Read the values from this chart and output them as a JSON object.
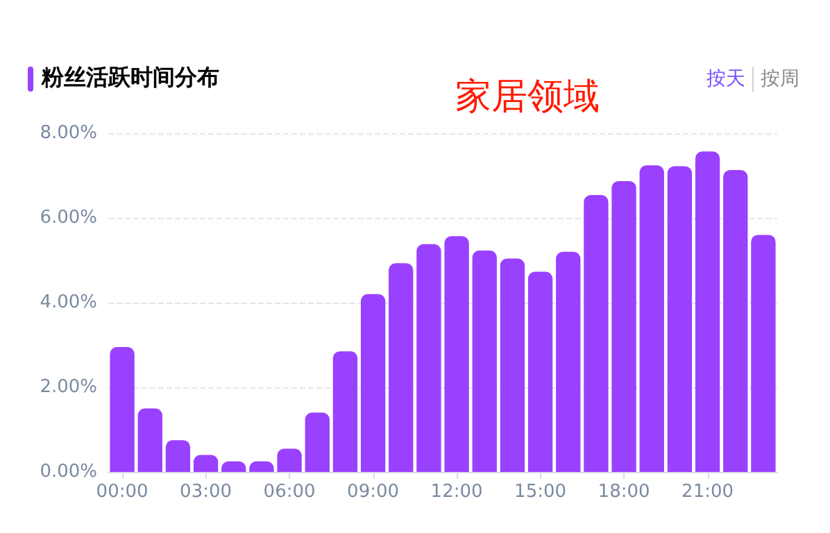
{
  "chart_data": {
    "type": "bar",
    "title": "粉丝活跃时间分布",
    "annotations": [
      "家居领域",
      "按天",
      "按周"
    ],
    "categories": [
      "00:00",
      null,
      null,
      "03:00",
      null,
      null,
      "06:00",
      null,
      null,
      "09:00",
      null,
      null,
      "12:00",
      null,
      null,
      "15:00",
      null,
      null,
      "18:00",
      null,
      null,
      "21:00",
      null,
      null
    ],
    "values": [
      2.95,
      1.5,
      0.75,
      0.4,
      0.25,
      0.25,
      0.55,
      1.4,
      2.85,
      4.2,
      4.93,
      5.38,
      5.57,
      5.23,
      5.04,
      4.73,
      5.2,
      6.54,
      6.87,
      7.24,
      7.22,
      7.57,
      7.13,
      5.6
    ],
    "color": "#9a40ff",
    "ylim": [
      0,
      8
    ],
    "yticks": [
      {
        "value": 0,
        "label": "0.00%"
      },
      {
        "value": 2,
        "label": "2.00%"
      },
      {
        "value": 4,
        "label": "4.00%"
      },
      {
        "value": 6,
        "label": "6.00%"
      },
      {
        "value": 8,
        "label": "8.00%"
      }
    ],
    "grid": "y"
  }
}
